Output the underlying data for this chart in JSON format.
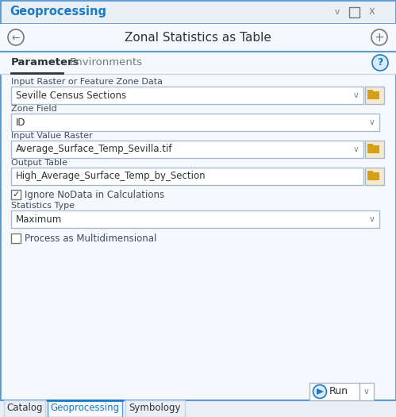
{
  "title_bar_text": "Geoprocessing",
  "main_title": "Zonal Statistics as Table",
  "tab1": "Parameters",
  "tab2": "Environments",
  "field1_label": "Input Raster or Feature Zone Data",
  "field1_value": "Seville Census Sections",
  "field1_folder": true,
  "field2_label": "Zone Field",
  "field2_value": "ID",
  "field2_folder": false,
  "field3_label": "Input Value Raster",
  "field3_value": "Average_Surface_Temp_Sevilla.tif",
  "field3_folder": true,
  "field4_label": "Output Table",
  "field4_value": "High_Average_Surface_Temp_by_Section",
  "field4_folder": true,
  "checkbox1_label": "Ignore NoData in Calculations",
  "checkbox1_checked": true,
  "stats_label": "Statistics Type",
  "stats_value": "Maximum",
  "checkbox2_label": "Process as Multidimensional",
  "checkbox2_checked": false,
  "bottom_tabs": [
    "Catalog",
    "Geoprocessing",
    "Symbology"
  ],
  "active_bottom_tab": "Geoprocessing",
  "bg_color": "#f0f4f8",
  "panel_bg": "#f5f8fc",
  "titlebar_bg": "#eaeff5",
  "border_color": "#5b9bd5",
  "field_border": "#aabccc",
  "text_dark": "#2d3436",
  "label_color": "#3d4c5c",
  "blue_color": "#1a7bc4",
  "folder_color": "#d4a017",
  "gray_color": "#777777",
  "white": "#ffffff",
  "tab_underline": "#2d3436",
  "run_border": "#aabccc"
}
